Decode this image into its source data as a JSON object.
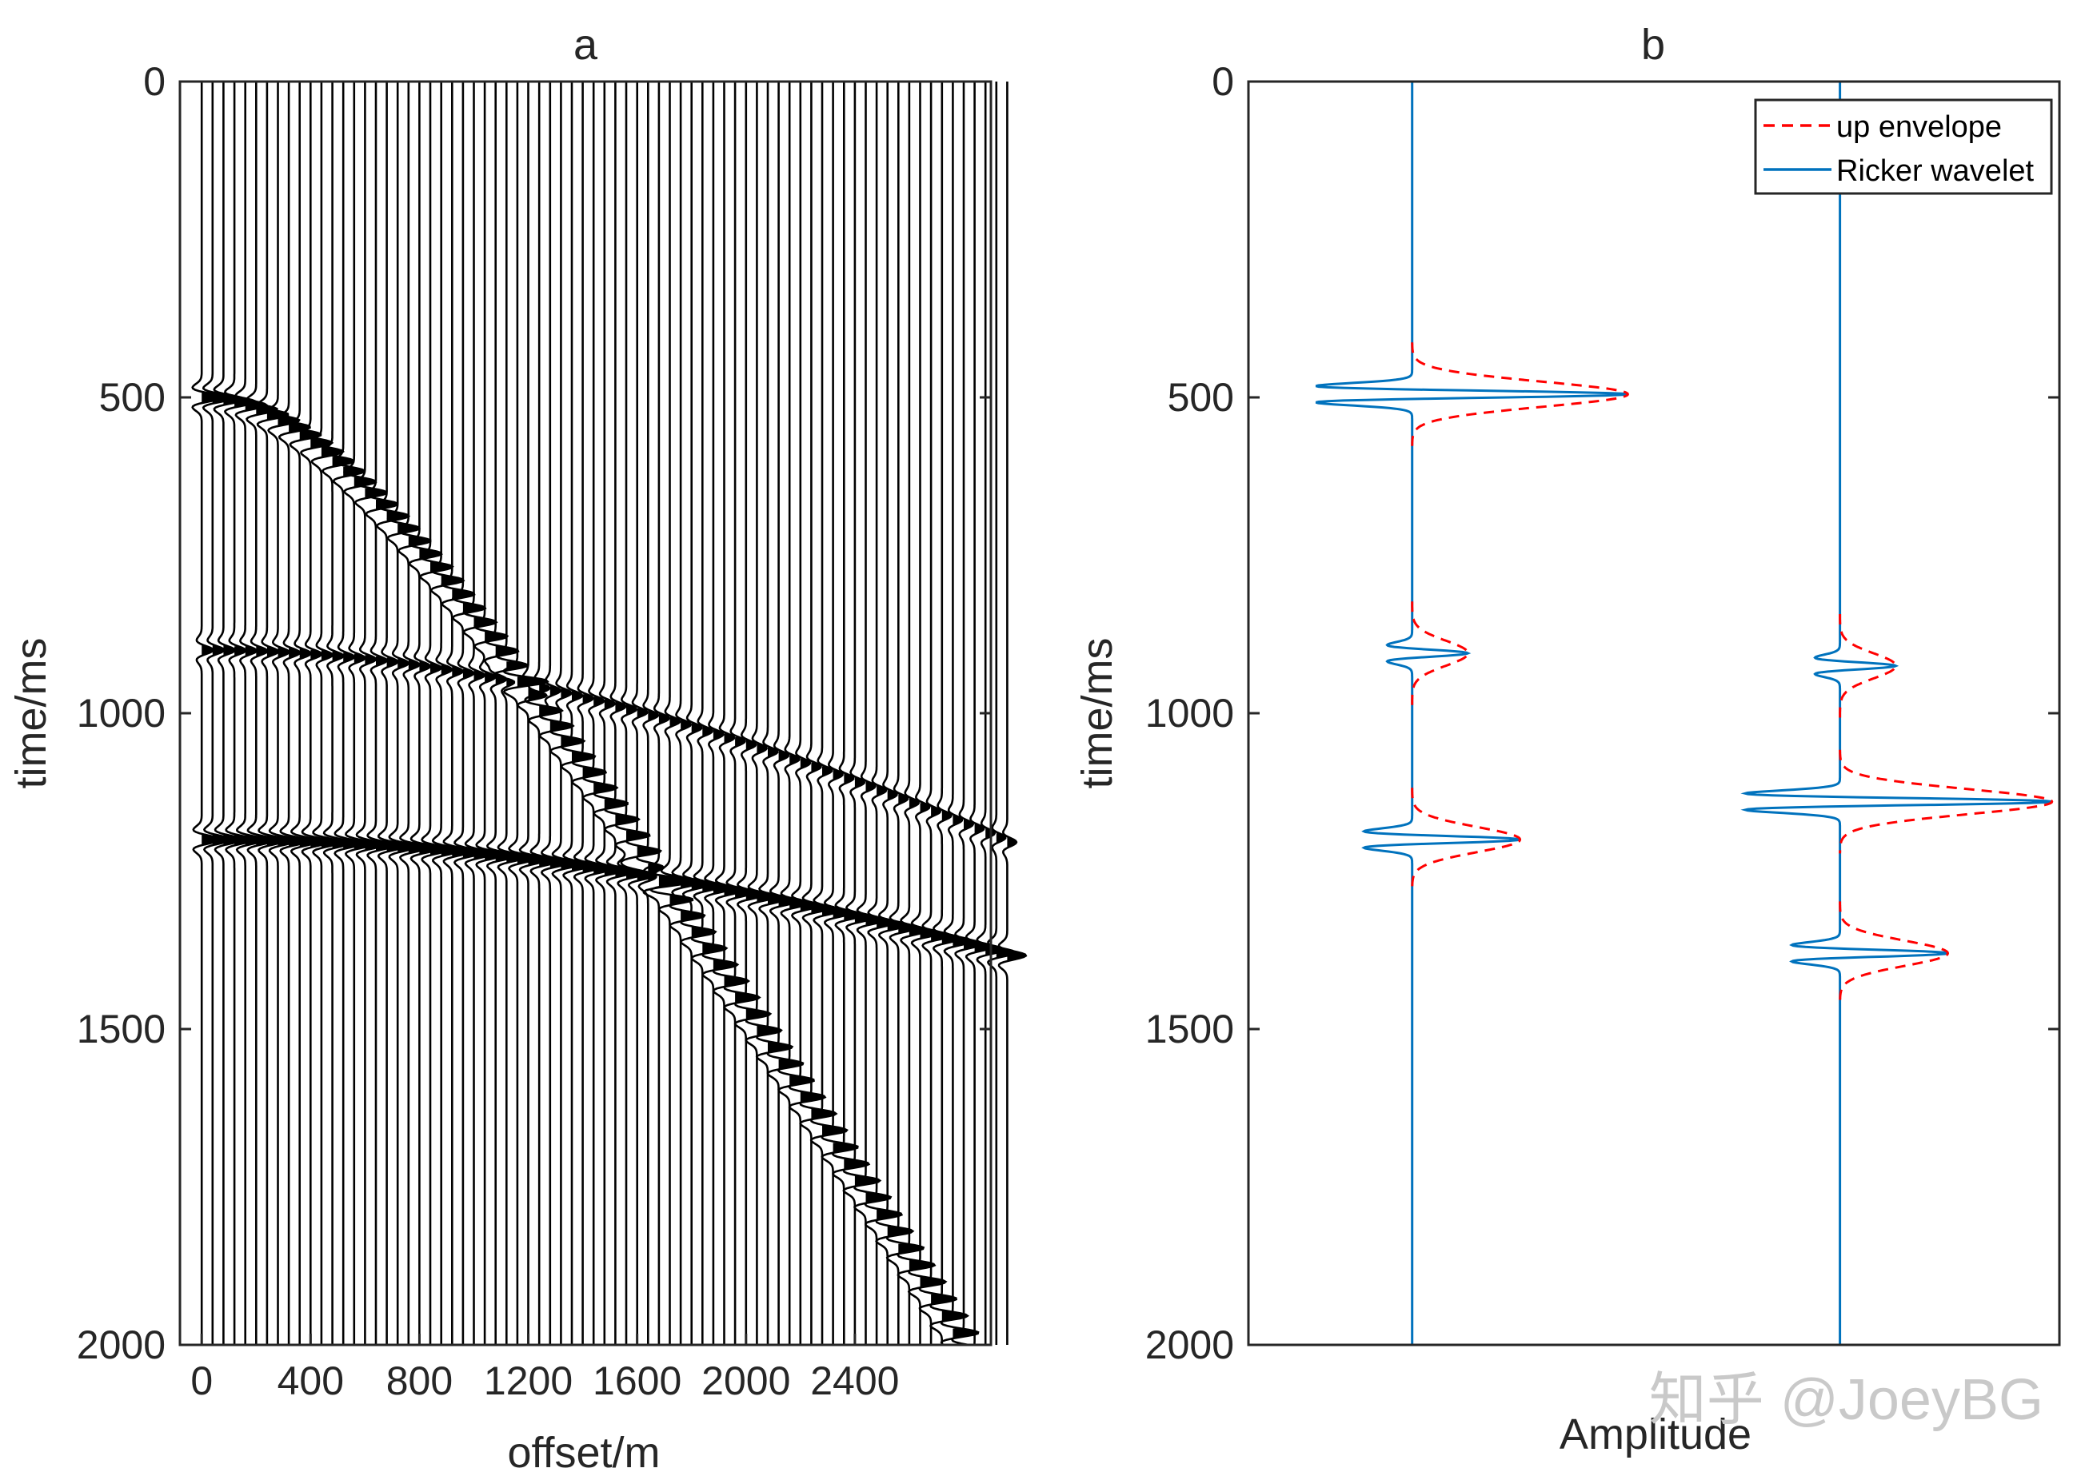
{
  "chart_data": [
    {
      "id": "a",
      "type": "line",
      "title": "a",
      "xlabel": "offset/m",
      "ylabel": "time/ms",
      "x_ticks": [
        0,
        400,
        800,
        1200,
        1600,
        2000,
        2400
      ],
      "y_ticks": [
        0,
        500,
        1000,
        1500,
        2000
      ],
      "xlim": [
        -80,
        2900
      ],
      "ylim": [
        0,
        2000
      ],
      "y_reversed": true,
      "trace_count": 75,
      "trace_spacing": 40,
      "line_color": "#000000",
      "events": [
        {
          "t0": 500,
          "v": 1440,
          "amp": 1.0,
          "amp_grow": 1.25
        },
        {
          "t0": 900,
          "v": 3700,
          "amp": 0.55,
          "amp_grow": 0.8
        },
        {
          "t0": 1200,
          "v": 4300,
          "amp": 0.9,
          "amp_grow": 1.0
        }
      ]
    },
    {
      "id": "b",
      "type": "line",
      "title": "b",
      "xlabel": "Amplitude",
      "ylabel": "time/ms",
      "y_ticks": [
        0,
        500,
        1000,
        1500,
        2000
      ],
      "ylim": [
        0,
        2000
      ],
      "y_reversed": true,
      "xlim": [
        -2.2,
        8.7
      ],
      "legend_position": "top-right",
      "series": [
        {
          "name": "Ricker wavelet",
          "style": "solid",
          "color": "#0072BD",
          "baseline": 0,
          "pulses": [
            {
              "t": 495,
              "amp": 2.9
            },
            {
              "t": 905,
              "amp": 0.75
            },
            {
              "t": 1200,
              "amp": 1.45
            }
          ]
        },
        {
          "name": "Ricker wavelet",
          "style": "solid",
          "color": "#0072BD",
          "baseline": 5.75,
          "pulses": [
            {
              "t": 925,
              "amp": 0.75
            },
            {
              "t": 1140,
              "amp": 2.85
            },
            {
              "t": 1380,
              "amp": 1.45
            }
          ]
        },
        {
          "name": "up envelope",
          "style": "dashed",
          "color": "#FF0000"
        }
      ],
      "legend": [
        "up envelope",
        "Ricker wavelet"
      ]
    }
  ],
  "watermark": "知乎 @JoeyBG"
}
